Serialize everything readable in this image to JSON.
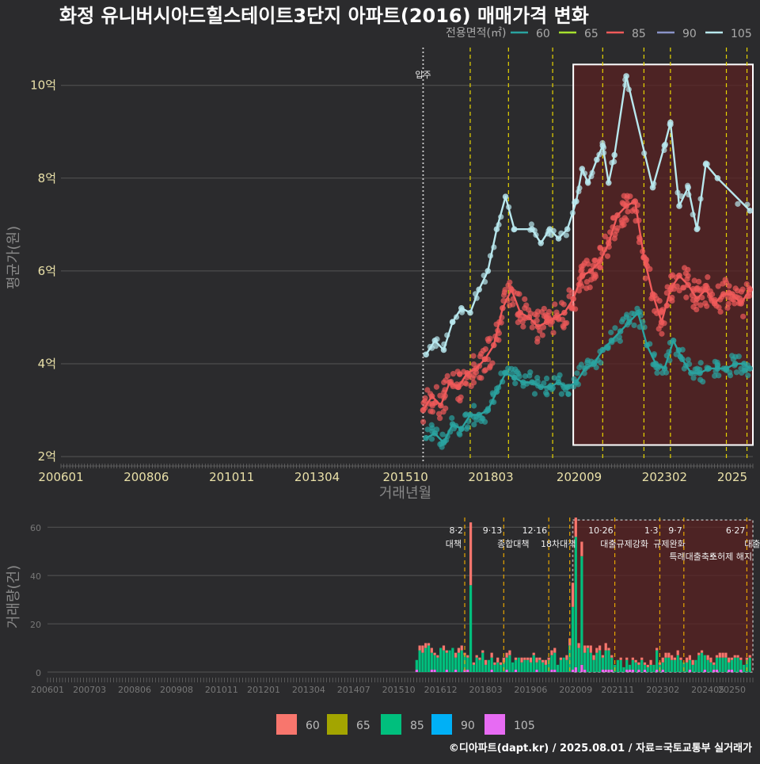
{
  "title": "화정 유니버시아드힐스테이트3단지 아파트(2016) 매매가격 변화",
  "credit": "©디아파트(dapt.kr) / 2025.08.01 / 자료=국토교통부 실거래가",
  "colors": {
    "s60_line": "#2aa3a0",
    "s65_line": "#a6e22e",
    "s85_line": "#f05a5a",
    "s90_line": "#8a93c8",
    "s105_line": "#b8e8ee",
    "v60": "#f8766d",
    "v65": "#a3a500",
    "v85": "#00bf7d",
    "v90": "#00b0f6",
    "v105": "#e76bf3",
    "highlight": "#5a2222"
  },
  "chart_data": [
    {
      "type": "line",
      "name": "price",
      "xlabel": "거래년월",
      "ylabel": "평균가(원)",
      "xlim": [
        "2006-01",
        "2025-08"
      ],
      "ylim": [
        1.9,
        10.9
      ],
      "x_ticks": [
        "200601",
        "200806",
        "201011",
        "201304",
        "201510",
        "201803",
        "202009",
        "202302",
        "2025"
      ],
      "y_ticks": [
        {
          "v": 2,
          "label": "2억"
        },
        {
          "v": 4,
          "label": "4억"
        },
        {
          "v": 6,
          "label": "6억"
        },
        {
          "v": 8,
          "label": "8억"
        },
        {
          "v": 10,
          "label": "10억"
        }
      ],
      "legend_title": "전용면적(㎡)",
      "legend_position": "top-right",
      "move_in": {
        "x": "2016-04",
        "label": "입주"
      },
      "policy_lines": [
        "2017-08",
        "2018-09",
        "2019-12",
        "2021-05",
        "2022-07",
        "2023-04",
        "2024-11",
        "2025-06"
      ],
      "highlight_box": {
        "x0": "2020-07",
        "x1": "2025-08",
        "y0": 2.25,
        "y1": 10.45
      },
      "series": [
        {
          "name": "60",
          "points": [
            [
              "2016-05",
              2.4
            ],
            [
              "2016-08",
              2.5
            ],
            [
              "2016-11",
              2.3
            ],
            [
              "2017-02",
              2.7
            ],
            [
              "2017-05",
              2.6
            ],
            [
              "2017-08",
              2.9
            ],
            [
              "2017-11",
              2.9
            ],
            [
              "2018-02",
              3.0
            ],
            [
              "2018-05",
              3.4
            ],
            [
              "2018-08",
              3.8
            ],
            [
              "2018-11",
              3.7
            ],
            [
              "2019-02",
              3.6
            ],
            [
              "2019-05",
              3.6
            ],
            [
              "2019-08",
              3.5
            ],
            [
              "2019-11",
              3.5
            ],
            [
              "2020-02",
              3.6
            ],
            [
              "2020-05",
              3.5
            ],
            [
              "2020-08",
              3.6
            ],
            [
              "2020-11",
              3.9
            ],
            [
              "2021-02",
              4.0
            ],
            [
              "2021-05",
              4.3
            ],
            [
              "2021-08",
              4.5
            ],
            [
              "2021-11",
              4.7
            ],
            [
              "2022-02",
              4.9
            ],
            [
              "2022-05",
              5.1
            ],
            [
              "2022-08",
              4.4
            ],
            [
              "2022-11",
              4.0
            ],
            [
              "2023-02",
              3.9
            ],
            [
              "2023-05",
              4.5
            ],
            [
              "2023-08",
              4.1
            ],
            [
              "2023-11",
              3.8
            ],
            [
              "2024-02",
              3.8
            ],
            [
              "2024-05",
              3.9
            ],
            [
              "2024-08",
              3.9
            ],
            [
              "2024-11",
              3.9
            ],
            [
              "2025-02",
              4.0
            ],
            [
              "2025-05",
              4.0
            ],
            [
              "2025-07",
              3.9
            ]
          ]
        },
        {
          "name": "85",
          "points": [
            [
              "2016-04",
              3.0
            ],
            [
              "2016-07",
              3.3
            ],
            [
              "2016-10",
              3.1
            ],
            [
              "2017-01",
              3.6
            ],
            [
              "2017-04",
              3.5
            ],
            [
              "2017-07",
              3.8
            ],
            [
              "2017-10",
              3.9
            ],
            [
              "2018-01",
              4.1
            ],
            [
              "2018-04",
              4.4
            ],
            [
              "2018-07",
              5.2
            ],
            [
              "2018-10",
              5.6
            ],
            [
              "2019-01",
              5.1
            ],
            [
              "2019-04",
              5.0
            ],
            [
              "2019-07",
              4.8
            ],
            [
              "2019-10",
              4.9
            ],
            [
              "2020-01",
              5.0
            ],
            [
              "2020-04",
              5.1
            ],
            [
              "2020-07",
              5.4
            ],
            [
              "2020-10",
              5.9
            ],
            [
              "2021-01",
              6.0
            ],
            [
              "2021-04",
              6.2
            ],
            [
              "2021-07",
              6.6
            ],
            [
              "2021-10",
              7.2
            ],
            [
              "2022-01",
              7.4
            ],
            [
              "2022-04",
              7.5
            ],
            [
              "2022-07",
              6.3
            ],
            [
              "2022-10",
              5.5
            ],
            [
              "2023-01",
              4.9
            ],
            [
              "2023-04",
              5.6
            ],
            [
              "2023-07",
              5.9
            ],
            [
              "2023-10",
              5.7
            ],
            [
              "2024-01",
              5.4
            ],
            [
              "2024-04",
              5.6
            ],
            [
              "2024-07",
              5.3
            ],
            [
              "2024-10",
              5.5
            ],
            [
              "2025-01",
              5.5
            ],
            [
              "2025-04",
              5.3
            ],
            [
              "2025-07",
              5.6
            ]
          ]
        },
        {
          "name": "105",
          "points": [
            [
              "2016-05",
              4.2
            ],
            [
              "2016-08",
              4.5
            ],
            [
              "2016-11",
              4.3
            ],
            [
              "2017-02",
              4.9
            ],
            [
              "2017-05",
              5.2
            ],
            [
              "2017-08",
              5.1
            ],
            [
              "2017-11",
              5.6
            ],
            [
              "2018-02",
              6.0
            ],
            [
              "2018-05",
              6.9
            ],
            [
              "2018-08",
              7.6
            ],
            [
              "2018-11",
              6.9
            ],
            [
              "2019-05",
              6.9
            ],
            [
              "2019-08",
              6.6
            ],
            [
              "2019-11",
              6.9
            ],
            [
              "2020-02",
              6.7
            ],
            [
              "2020-05",
              6.9
            ],
            [
              "2020-08",
              7.5
            ],
            [
              "2020-10",
              8.2
            ],
            [
              "2020-12",
              7.9
            ],
            [
              "2021-03",
              8.4
            ],
            [
              "2021-05",
              8.7
            ],
            [
              "2021-07",
              7.9
            ],
            [
              "2021-09",
              8.5
            ],
            [
              "2022-01",
              10.2
            ],
            [
              "2022-10",
              7.8
            ],
            [
              "2023-02",
              8.7
            ],
            [
              "2023-04",
              9.2
            ],
            [
              "2023-07",
              7.4
            ],
            [
              "2023-10",
              7.8
            ],
            [
              "2024-01",
              6.9
            ],
            [
              "2024-04",
              8.3
            ],
            [
              "2024-08",
              8.0
            ],
            [
              "2025-07",
              7.3
            ]
          ]
        }
      ]
    },
    {
      "type": "bar",
      "name": "volume",
      "ylabel": "거래량(건)",
      "ylim": [
        0,
        65
      ],
      "y_ticks": [
        0,
        20,
        40,
        60
      ],
      "x_ticks": [
        "200601",
        "200703",
        "200806",
        "200908",
        "201011",
        "201201",
        "201304",
        "201407",
        "201510",
        "201612",
        "201803",
        "201906",
        "202009",
        "202111",
        "202302",
        "202405",
        "20250"
      ],
      "legend_position": "bottom",
      "legend": [
        "60",
        "65",
        "85",
        "90",
        "105"
      ],
      "policy_lines": [
        {
          "x": "2017-08",
          "date": "8·2",
          "label": "대책"
        },
        {
          "x": "2018-09",
          "date": "9·13",
          "label": "종합대책"
        },
        {
          "x": "2019-12",
          "date": "12·16",
          "label": "18차대책"
        },
        {
          "x": "2020-07",
          "date": "",
          "label": ""
        },
        {
          "x": "2021-10",
          "date": "10·26",
          "label": "대출규제강화"
        },
        {
          "x": "2023-01",
          "date": "1·3",
          "label": "규제완화"
        },
        {
          "x": "2023-09",
          "date": "9·7",
          "label": "특례대출축소"
        },
        {
          "x": "2025-06",
          "date": "6·27",
          "label": "대출규"
        }
      ],
      "extra_text": "토허제 해지",
      "highlight_box": {
        "x0": "2020-08",
        "x1": "2025-08",
        "y0": 0,
        "y1": 63
      },
      "peaks": [
        {
          "x": "2017-10",
          "v60": 26,
          "v85": 36,
          "v105": 0
        },
        {
          "x": "2020-09",
          "v60": 8,
          "v85": 54,
          "v105": 2
        },
        {
          "x": "2020-11",
          "v60": 6,
          "v85": 45,
          "v105": 3
        },
        {
          "x": "2020-08",
          "v60": 10,
          "v85": 26,
          "v105": 1
        }
      ]
    }
  ]
}
